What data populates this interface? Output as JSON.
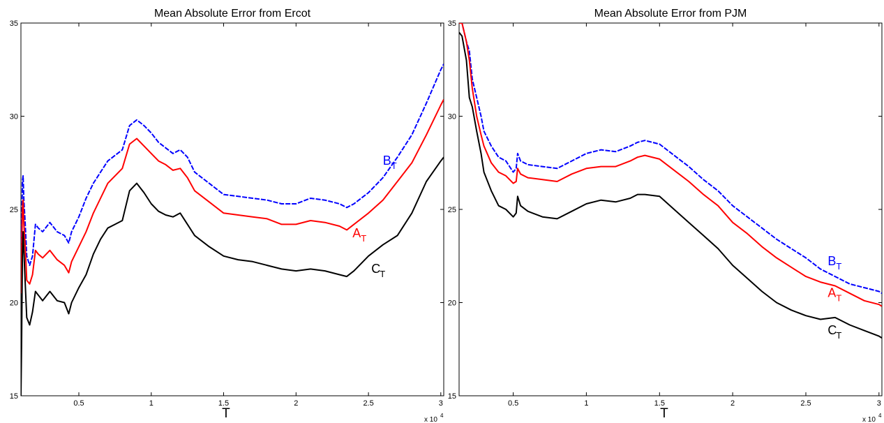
{
  "chart_data": [
    {
      "type": "line",
      "title": "Mean Absolute Error from Ercot",
      "xlabel": "T",
      "ylabel": "",
      "x_multiplier": "x 10",
      "x_multiplier_exp": "4",
      "xlim": [
        0.1,
        3.02
      ],
      "ylim": [
        15,
        35
      ],
      "x_ticks": [
        {
          "v": 0.5,
          "label": "0.5"
        },
        {
          "v": 1,
          "label": "1"
        },
        {
          "v": 1.5,
          "label": "1.5"
        },
        {
          "v": 2,
          "label": "2"
        },
        {
          "v": 2.5,
          "label": "2.5"
        },
        {
          "v": 3,
          "label": "3"
        }
      ],
      "y_ticks": [
        {
          "v": 15,
          "label": "15"
        },
        {
          "v": 20,
          "label": "20"
        },
        {
          "v": 25,
          "label": "25"
        },
        {
          "v": 30,
          "label": "30"
        },
        {
          "v": 35,
          "label": "35"
        }
      ],
      "grid": false,
      "series": [
        {
          "name": "B",
          "subscript": "T",
          "color": "#0000ff",
          "dash": "dashed",
          "label_pos": [
            2.6,
            27.4
          ],
          "x": [
            0.1,
            0.11,
            0.115,
            0.12,
            0.13,
            0.14,
            0.16,
            0.18,
            0.2,
            0.22,
            0.25,
            0.3,
            0.35,
            0.4,
            0.43,
            0.45,
            0.5,
            0.55,
            0.6,
            0.65,
            0.7,
            0.75,
            0.8,
            0.85,
            0.9,
            0.95,
            1.0,
            1.05,
            1.1,
            1.15,
            1.2,
            1.25,
            1.3,
            1.4,
            1.5,
            1.6,
            1.7,
            1.8,
            1.9,
            2.0,
            2.1,
            2.2,
            2.3,
            2.35,
            2.4,
            2.5,
            2.6,
            2.7,
            2.8,
            2.9,
            3.0,
            3.02
          ],
          "y": [
            21.5,
            26.5,
            26.8,
            25.5,
            24.2,
            22.5,
            22.0,
            22.5,
            24.2,
            24.0,
            23.8,
            24.3,
            23.8,
            23.6,
            23.2,
            23.8,
            24.6,
            25.6,
            26.4,
            27.0,
            27.6,
            27.9,
            28.2,
            29.5,
            29.8,
            29.5,
            29.1,
            28.6,
            28.3,
            28.0,
            28.2,
            27.8,
            27.0,
            26.4,
            25.8,
            25.7,
            25.6,
            25.5,
            25.3,
            25.3,
            25.6,
            25.5,
            25.3,
            25.1,
            25.3,
            25.9,
            26.7,
            27.8,
            29.0,
            30.7,
            32.5,
            32.8
          ]
        },
        {
          "name": "A",
          "subscript": "T",
          "color": "#ff0000",
          "dash": "solid",
          "label_pos": [
            2.39,
            23.5
          ],
          "x": [
            0.1,
            0.11,
            0.115,
            0.12,
            0.13,
            0.14,
            0.16,
            0.18,
            0.2,
            0.22,
            0.25,
            0.3,
            0.35,
            0.4,
            0.43,
            0.45,
            0.5,
            0.55,
            0.6,
            0.65,
            0.7,
            0.75,
            0.8,
            0.85,
            0.9,
            0.95,
            1.0,
            1.05,
            1.1,
            1.15,
            1.2,
            1.25,
            1.3,
            1.4,
            1.5,
            1.6,
            1.7,
            1.8,
            1.9,
            2.0,
            2.1,
            2.2,
            2.3,
            2.35,
            2.4,
            2.5,
            2.6,
            2.7,
            2.8,
            2.9,
            3.0,
            3.02
          ],
          "y": [
            20.5,
            25.0,
            25.5,
            24.2,
            23.0,
            21.2,
            21.0,
            21.5,
            22.8,
            22.6,
            22.4,
            22.8,
            22.3,
            22.0,
            21.6,
            22.2,
            23.0,
            23.8,
            24.8,
            25.6,
            26.4,
            26.8,
            27.2,
            28.5,
            28.8,
            28.4,
            28.0,
            27.6,
            27.4,
            27.1,
            27.2,
            26.7,
            26.0,
            25.4,
            24.8,
            24.7,
            24.6,
            24.5,
            24.2,
            24.2,
            24.4,
            24.3,
            24.1,
            23.9,
            24.2,
            24.8,
            25.5,
            26.5,
            27.5,
            29.0,
            30.6,
            30.9
          ]
        },
        {
          "name": "C",
          "subscript": "T",
          "color": "#000000",
          "dash": "solid",
          "label_pos": [
            2.52,
            21.6
          ],
          "x": [
            0.1,
            0.105,
            0.11,
            0.115,
            0.12,
            0.13,
            0.14,
            0.16,
            0.18,
            0.2,
            0.22,
            0.25,
            0.3,
            0.35,
            0.4,
            0.43,
            0.45,
            0.5,
            0.55,
            0.6,
            0.65,
            0.7,
            0.75,
            0.8,
            0.85,
            0.9,
            0.95,
            1.0,
            1.05,
            1.1,
            1.15,
            1.2,
            1.25,
            1.3,
            1.4,
            1.5,
            1.6,
            1.7,
            1.8,
            1.9,
            2.0,
            2.1,
            2.2,
            2.3,
            2.35,
            2.4,
            2.5,
            2.6,
            2.7,
            2.8,
            2.9,
            3.0,
            3.02
          ],
          "y": [
            15.0,
            18.0,
            22.5,
            23.8,
            22.8,
            21.0,
            19.2,
            18.8,
            19.5,
            20.6,
            20.4,
            20.1,
            20.6,
            20.1,
            20.0,
            19.4,
            20.0,
            20.8,
            21.5,
            22.6,
            23.4,
            24.0,
            24.2,
            24.4,
            26.0,
            26.4,
            25.9,
            25.3,
            24.9,
            24.7,
            24.6,
            24.8,
            24.2,
            23.6,
            23.0,
            22.5,
            22.3,
            22.2,
            22.0,
            21.8,
            21.7,
            21.8,
            21.7,
            21.5,
            21.4,
            21.7,
            22.5,
            23.1,
            23.6,
            24.8,
            26.5,
            27.6,
            27.8
          ]
        }
      ]
    },
    {
      "type": "line",
      "title": "Mean Absolute Error from PJM",
      "xlabel": "T",
      "ylabel": "",
      "x_multiplier": "x 10",
      "x_multiplier_exp": "4",
      "xlim": [
        0.13,
        3.02
      ],
      "ylim": [
        15,
        35
      ],
      "x_ticks": [
        {
          "v": 0.5,
          "label": "0.5"
        },
        {
          "v": 1,
          "label": "1"
        },
        {
          "v": 1.5,
          "label": "1.5"
        },
        {
          "v": 2,
          "label": "2"
        },
        {
          "v": 2.5,
          "label": "2.5"
        },
        {
          "v": 3,
          "label": "3"
        }
      ],
      "y_ticks": [
        {
          "v": 15,
          "label": "15"
        },
        {
          "v": 20,
          "label": "20"
        },
        {
          "v": 25,
          "label": "25"
        },
        {
          "v": 30,
          "label": "30"
        },
        {
          "v": 35,
          "label": "35"
        }
      ],
      "grid": false,
      "series": [
        {
          "name": "B",
          "subscript": "T",
          "color": "#0000ff",
          "dash": "dashed",
          "label_pos": [
            2.65,
            22.0
          ],
          "x": [
            0.13,
            0.15,
            0.18,
            0.2,
            0.22,
            0.25,
            0.28,
            0.3,
            0.35,
            0.4,
            0.45,
            0.5,
            0.52,
            0.53,
            0.55,
            0.6,
            0.7,
            0.8,
            0.9,
            1.0,
            1.1,
            1.2,
            1.3,
            1.35,
            1.4,
            1.5,
            1.6,
            1.7,
            1.8,
            1.9,
            2.0,
            2.1,
            2.2,
            2.3,
            2.4,
            2.5,
            2.6,
            2.7,
            2.8,
            2.9,
            3.0,
            3.02
          ],
          "y": [
            35.0,
            35.0,
            34.0,
            33.5,
            32.0,
            31.0,
            30.0,
            29.2,
            28.4,
            27.8,
            27.6,
            27.0,
            27.2,
            28.0,
            27.6,
            27.4,
            27.3,
            27.2,
            27.6,
            28.0,
            28.2,
            28.1,
            28.4,
            28.6,
            28.7,
            28.5,
            27.9,
            27.3,
            26.6,
            26.0,
            25.2,
            24.6,
            24.0,
            23.4,
            22.9,
            22.4,
            21.8,
            21.4,
            21.0,
            20.8,
            20.6,
            20.5
          ]
        },
        {
          "name": "A",
          "subscript": "T",
          "color": "#ff0000",
          "dash": "solid",
          "label_pos": [
            2.65,
            20.3
          ],
          "x": [
            0.13,
            0.15,
            0.18,
            0.2,
            0.22,
            0.25,
            0.28,
            0.3,
            0.35,
            0.4,
            0.45,
            0.5,
            0.52,
            0.53,
            0.55,
            0.6,
            0.7,
            0.8,
            0.9,
            1.0,
            1.1,
            1.2,
            1.3,
            1.35,
            1.4,
            1.5,
            1.6,
            1.7,
            1.8,
            1.9,
            2.0,
            2.1,
            2.2,
            2.3,
            2.4,
            2.5,
            2.6,
            2.7,
            2.8,
            2.9,
            3.0,
            3.02
          ],
          "y": [
            35.0,
            35.0,
            34.0,
            33.0,
            31.5,
            30.0,
            29.0,
            28.4,
            27.5,
            27.0,
            26.8,
            26.4,
            26.5,
            27.2,
            26.9,
            26.7,
            26.6,
            26.5,
            26.9,
            27.2,
            27.3,
            27.3,
            27.6,
            27.8,
            27.9,
            27.7,
            27.1,
            26.5,
            25.8,
            25.2,
            24.3,
            23.7,
            23.0,
            22.4,
            21.9,
            21.4,
            21.1,
            20.9,
            20.5,
            20.1,
            19.9,
            19.8
          ]
        },
        {
          "name": "C",
          "subscript": "T",
          "color": "#000000",
          "dash": "solid",
          "label_pos": [
            2.65,
            18.3
          ],
          "x": [
            0.13,
            0.15,
            0.18,
            0.2,
            0.22,
            0.25,
            0.28,
            0.3,
            0.35,
            0.4,
            0.45,
            0.5,
            0.52,
            0.53,
            0.55,
            0.6,
            0.7,
            0.8,
            0.9,
            1.0,
            1.1,
            1.2,
            1.3,
            1.35,
            1.4,
            1.5,
            1.6,
            1.7,
            1.8,
            1.9,
            2.0,
            2.1,
            2.2,
            2.3,
            2.4,
            2.5,
            2.6,
            2.7,
            2.8,
            2.9,
            3.0,
            3.02
          ],
          "y": [
            34.5,
            34.3,
            33.0,
            31.0,
            30.5,
            29.2,
            28.0,
            27.0,
            26.0,
            25.2,
            25.0,
            24.6,
            24.8,
            25.7,
            25.2,
            24.9,
            24.6,
            24.5,
            24.9,
            25.3,
            25.5,
            25.4,
            25.6,
            25.8,
            25.8,
            25.7,
            25.0,
            24.3,
            23.6,
            22.9,
            22.0,
            21.3,
            20.6,
            20.0,
            19.6,
            19.3,
            19.1,
            19.2,
            18.8,
            18.5,
            18.2,
            18.1
          ]
        }
      ]
    }
  ]
}
